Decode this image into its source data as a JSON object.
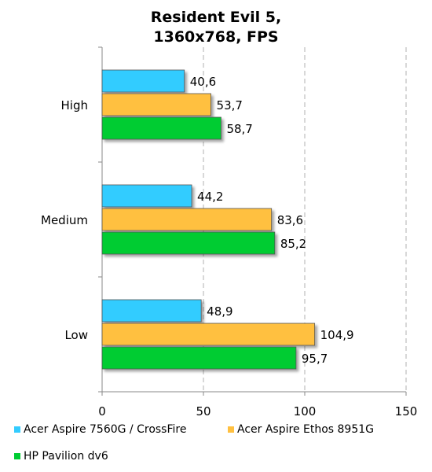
{
  "chart_data": {
    "type": "bar",
    "orientation": "horizontal",
    "title_lines": [
      "Resident Evil 5,",
      "1360x768, FPS"
    ],
    "xlabel": "",
    "ylabel": "",
    "categories": [
      "High",
      "Medium",
      "Low"
    ],
    "series": [
      {
        "name": "Acer Aspire 7560G / CrossFire",
        "values": [
          40.6,
          44.2,
          48.9
        ],
        "labels": [
          "40,6",
          "44,2",
          "48,9"
        ],
        "color": "#33CCFF"
      },
      {
        "name": "Acer Aspire Ethos 8951G",
        "values": [
          53.7,
          83.6,
          104.9
        ],
        "labels": [
          "53,7",
          "83,6",
          "104,9"
        ],
        "color": "#FFC040"
      },
      {
        "name": "HP Pavilion dv6",
        "values": [
          58.7,
          85.2,
          95.7
        ],
        "labels": [
          "58,7",
          "85,2",
          "95,7"
        ],
        "color": "#00CC33"
      }
    ],
    "xlim": [
      0,
      150
    ],
    "x_ticks": [
      0,
      50,
      100,
      150
    ],
    "x_tick_labels": [
      "0",
      "50",
      "100",
      "150"
    ],
    "grid": "vertical dashed",
    "legend_position": "bottom"
  }
}
